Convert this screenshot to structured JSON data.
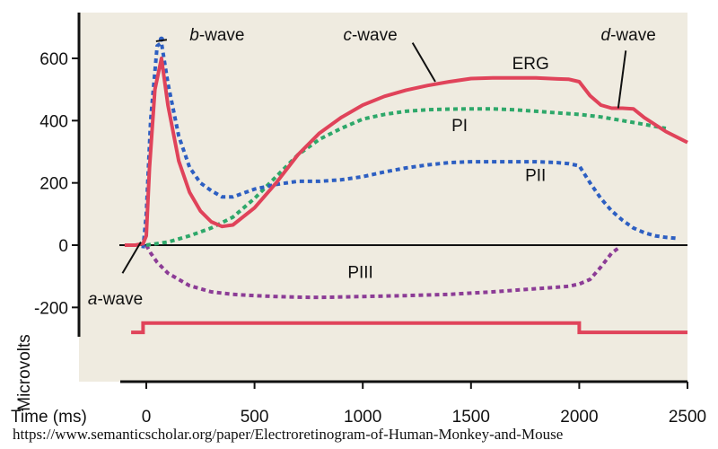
{
  "chart_data": {
    "type": "line",
    "xlabel": "Time (ms)",
    "ylabel": "Microvolts",
    "xlim": [
      -130,
      2500
    ],
    "ylim": [
      -300,
      740
    ],
    "x_ticks": [
      0,
      500,
      1000,
      1500,
      2000,
      2500
    ],
    "x_tick_labels": [
      "0",
      "500",
      "1000",
      "1500",
      "2000",
      "2500"
    ],
    "y_ticks": [
      600,
      400,
      200,
      0,
      -200
    ],
    "y_tick_labels": [
      "600",
      "400",
      "200",
      "0",
      "-200"
    ],
    "zero_line": true,
    "series": [
      {
        "name": "ERG",
        "color": "#e0435a",
        "style": "solid",
        "x": [
          -100,
          -50,
          -15,
          0,
          15,
          40,
          70,
          100,
          150,
          200,
          250,
          300,
          350,
          400,
          500,
          600,
          700,
          800,
          900,
          1000,
          1100,
          1200,
          1300,
          1400,
          1500,
          1600,
          1700,
          1800,
          1900,
          1950,
          2000,
          2050,
          2100,
          2150,
          2200,
          2250,
          2300,
          2400,
          2500
        ],
        "y": [
          0,
          0,
          5,
          30,
          250,
          500,
          600,
          450,
          270,
          170,
          110,
          75,
          60,
          65,
          120,
          200,
          290,
          360,
          410,
          450,
          478,
          498,
          513,
          525,
          535,
          537,
          537,
          537,
          534,
          533,
          525,
          480,
          450,
          440,
          440,
          438,
          410,
          365,
          330
        ]
      },
      {
        "name": "PI",
        "color": "#2ea86a",
        "style": "dashed",
        "x": [
          0,
          100,
          200,
          300,
          400,
          500,
          600,
          700,
          800,
          900,
          1000,
          1100,
          1200,
          1300,
          1400,
          1500,
          1600,
          1700,
          1800,
          1900,
          2000,
          2100,
          2200,
          2300,
          2400
        ],
        "y": [
          0,
          10,
          30,
          55,
          90,
          150,
          220,
          290,
          340,
          375,
          405,
          420,
          430,
          435,
          437,
          438,
          438,
          435,
          430,
          425,
          420,
          412,
          400,
          388,
          375
        ]
      },
      {
        "name": "PII",
        "color": "#2d5fc2",
        "style": "dashed",
        "x": [
          -15,
          0,
          20,
          50,
          70,
          100,
          150,
          200,
          250,
          300,
          350,
          400,
          500,
          600,
          700,
          800,
          900,
          1000,
          1100,
          1200,
          1300,
          1400,
          1500,
          1600,
          1700,
          1800,
          1900,
          1950,
          2000,
          2050,
          2100,
          2150,
          2200,
          2250,
          2300,
          2350,
          2400,
          2450
        ],
        "y": [
          -10,
          100,
          400,
          640,
          650,
          520,
          350,
          250,
          200,
          175,
          155,
          155,
          180,
          195,
          205,
          205,
          210,
          220,
          235,
          248,
          258,
          265,
          268,
          268,
          268,
          268,
          265,
          262,
          255,
          200,
          150,
          110,
          80,
          55,
          40,
          30,
          25,
          22
        ]
      },
      {
        "name": "PIII",
        "color": "#8c3c96",
        "style": "dashed",
        "x": [
          0,
          20,
          50,
          100,
          200,
          300,
          400,
          500,
          600,
          700,
          800,
          1000,
          1200,
          1400,
          1600,
          1800,
          1900,
          1950,
          2000,
          2050,
          2100,
          2150,
          2190
        ],
        "y": [
          0,
          -25,
          -55,
          -90,
          -130,
          -150,
          -158,
          -162,
          -165,
          -167,
          -168,
          -165,
          -162,
          -158,
          -150,
          -140,
          -135,
          -132,
          -125,
          -110,
          -70,
          -25,
          -5
        ]
      }
    ],
    "stimulus_bar": {
      "color": "#e0435a",
      "x": [
        -70,
        -15,
        -15,
        2000,
        2000,
        2500
      ],
      "y": [
        -280,
        -280,
        -250,
        -250,
        -280,
        -280
      ]
    },
    "annotations": [
      {
        "prefix": "b",
        "suffix": "-wave",
        "italic_prefix": true,
        "x": 200,
        "y": 658,
        "pointer": [
          [
            95,
            660
          ],
          [
            45,
            655
          ]
        ]
      },
      {
        "prefix": "c",
        "suffix": "-wave",
        "italic_prefix": true,
        "x": 910,
        "y": 658,
        "pointer": [
          [
            1230,
            650
          ],
          [
            1335,
            525
          ]
        ]
      },
      {
        "prefix": "d",
        "suffix": "-wave",
        "italic_prefix": true,
        "x": 2100,
        "y": 658,
        "pointer": [
          [
            2215,
            625
          ],
          [
            2180,
            440
          ]
        ]
      },
      {
        "prefix": "a",
        "suffix": "-wave",
        "italic_prefix": true,
        "x": -270,
        "y": -190,
        "pointer": [
          [
            -110,
            -90
          ],
          [
            -25,
            10
          ]
        ]
      },
      {
        "prefix": "",
        "suffix": "ERG",
        "italic_prefix": false,
        "x": 1690,
        "y": 566,
        "pointer": []
      },
      {
        "prefix": "",
        "suffix": "PI",
        "italic_prefix": false,
        "x": 1410,
        "y": 366,
        "pointer": []
      },
      {
        "prefix": "",
        "suffix": "PII",
        "italic_prefix": false,
        "x": 1750,
        "y": 206,
        "pointer": []
      },
      {
        "prefix": "",
        "suffix": "PIII",
        "italic_prefix": false,
        "x": 930,
        "y": -105,
        "pointer": []
      }
    ]
  },
  "source_caption": "https://www.semanticscholar.org/paper/Electroretinogram-of-Human-Monkey-and-Mouse",
  "colors": {
    "plot_background": "#efebe0",
    "axis": "#111111"
  }
}
